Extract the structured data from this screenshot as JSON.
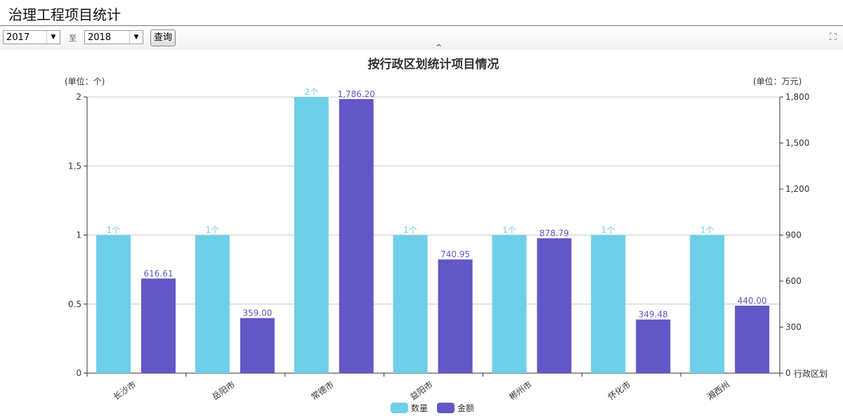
{
  "page": {
    "title": "治理工程项目统计"
  },
  "filter": {
    "from": "2017",
    "to_label": "至",
    "to": "2018",
    "query_label": "查询",
    "fullscreen_icon": "expand-icon",
    "collapse_icon": "caret-up-icon"
  },
  "chart_data": {
    "type": "bar",
    "title": "按行政区划统计项目情况",
    "xlabel": "行政区划",
    "ylabel_left": "(单位：个)",
    "ylabel_right": "(单位：万元)",
    "categories": [
      "长沙市",
      "岳阳市",
      "常德市",
      "益阳市",
      "郴州市",
      "怀化市",
      "湘西州"
    ],
    "series": [
      {
        "name": "数量",
        "axis": "left",
        "color": "#6ecfe8",
        "values": [
          1,
          1,
          2,
          1,
          1,
          1,
          1
        ],
        "labels": [
          "1个",
          "1个",
          "2个",
          "1个",
          "1个",
          "1个",
          "1个"
        ]
      },
      {
        "name": "金额",
        "axis": "right",
        "color": "#6157c6",
        "values": [
          616.61,
          359.0,
          1786.2,
          740.95,
          878.79,
          349.48,
          440.0
        ],
        "labels": [
          "616.61",
          "359.00",
          "1,786.20",
          "740.95",
          "878.79",
          "349.48",
          "440.00"
        ]
      }
    ],
    "ylim_left": [
      0,
      2
    ],
    "yticks_left": [
      "0",
      "0.5",
      "1",
      "1.5",
      "2"
    ],
    "ylim_right": [
      0,
      1800
    ],
    "yticks_right": [
      "0",
      "300",
      "600",
      "900",
      "1,200",
      "1,500",
      "1,800"
    ],
    "grid": true,
    "legend": "bottom-center"
  }
}
